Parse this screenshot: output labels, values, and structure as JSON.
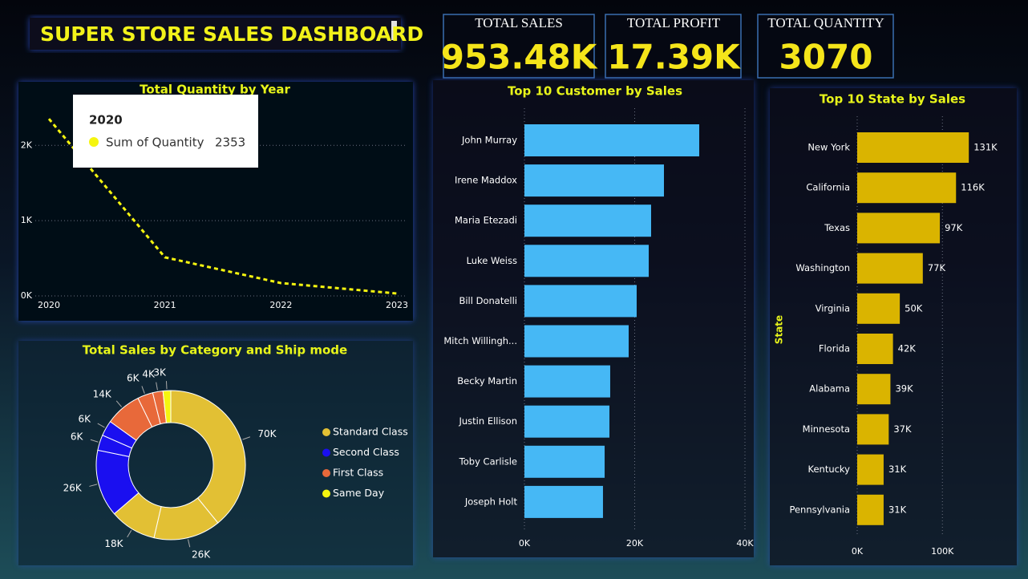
{
  "header": {
    "title": "SUPER STORE SALES DASHBOARD"
  },
  "kpis": [
    {
      "label": "TOTAL SALES",
      "value": "953.48K"
    },
    {
      "label": "TOTAL PROFIT",
      "value": "17.39K"
    },
    {
      "label": "TOTAL QUANTITY",
      "value": "3070"
    }
  ],
  "chart_data": [
    {
      "type": "line",
      "title": "Total Quantity by Year",
      "x": [
        2020,
        2021,
        2022,
        2023
      ],
      "xlim": [
        2020,
        2023
      ],
      "xticks": [
        2020,
        2021,
        2022,
        2023
      ],
      "series": [
        {
          "name": "Sum of Quantity",
          "color": "#f5f50f",
          "values": [
            2353,
            513,
            171,
            32
          ]
        }
      ],
      "ylim": [
        0,
        2600
      ],
      "yticks": [
        {
          "value": 0,
          "label": "0K"
        },
        {
          "value": 1000,
          "label": "1K"
        },
        {
          "value": 2000,
          "label": "2K"
        }
      ],
      "grid": true
    },
    {
      "type": "donut",
      "title": "Total Sales by Category and Ship mode",
      "series": [
        {
          "name": "Standard Class",
          "color": "#e2c034",
          "values": [
            70000,
            26000,
            18000
          ],
          "value_labels": [
            "70K",
            "26K",
            "18K"
          ]
        },
        {
          "name": "Second Class",
          "color": "#1a0ff0",
          "values": [
            26000,
            6000,
            6000
          ],
          "value_labels": [
            "26K",
            "6K",
            "6K"
          ]
        },
        {
          "name": "First Class",
          "color": "#e8693a",
          "values": [
            14000,
            6000,
            4000
          ],
          "value_labels": [
            "14K",
            "6K",
            "4K"
          ]
        },
        {
          "name": "Same Day",
          "color": "#f5f50f",
          "values": [
            3000
          ],
          "value_labels": [
            "3K"
          ]
        }
      ],
      "legend": "right"
    },
    {
      "type": "bar",
      "orientation": "horizontal",
      "title": "Top 10 Customer by Sales",
      "categories": [
        "John Murray",
        "Irene Maddox",
        "Maria Etezadi",
        "Luke Weiss",
        "Bill Donatelli",
        "Mitch Willingh...",
        "Becky Martin",
        "Justin Ellison",
        "Toby Carlisle",
        "Joseph Holt"
      ],
      "values": [
        31710,
        25310,
        22980,
        22550,
        20360,
        18910,
        15560,
        15420,
        14550,
        14250
      ],
      "color": "#46b8f5",
      "xlim": [
        0,
        40000
      ],
      "xticks": [
        {
          "value": 0,
          "label": "0K"
        },
        {
          "value": 20000,
          "label": "20K"
        },
        {
          "value": 40000,
          "label": "40K"
        }
      ],
      "grid": true
    },
    {
      "type": "bar",
      "orientation": "horizontal",
      "title": "Top 10 State by Sales",
      "ylabel": "State",
      "categories": [
        "New York",
        "California",
        "Texas",
        "Washington",
        "Virginia",
        "Florida",
        "Alabama",
        "Minnesota",
        "Kentucky",
        "Pennsylvania"
      ],
      "values": [
        131000,
        116000,
        97000,
        77000,
        50000,
        42000,
        39000,
        37000,
        31000,
        31000
      ],
      "value_labels": [
        "131K",
        "116K",
        "97K",
        "77K",
        "50K",
        "42K",
        "39K",
        "37K",
        "31K",
        "31K"
      ],
      "color": "#dab400",
      "xlim": [
        0,
        160000
      ],
      "xticks": [
        {
          "value": 0,
          "label": "0K"
        },
        {
          "value": 100000,
          "label": "100K"
        }
      ],
      "grid": true
    }
  ]
}
